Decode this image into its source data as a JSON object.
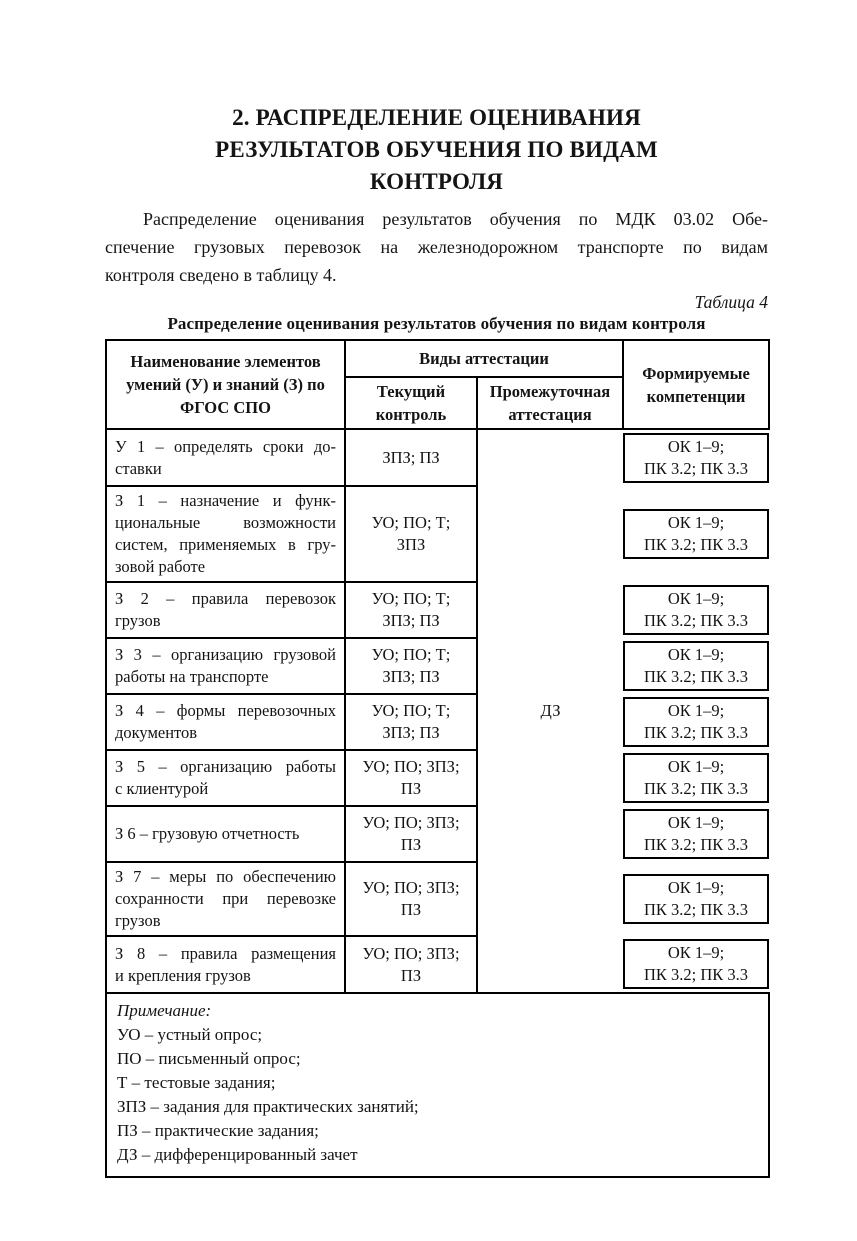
{
  "colors": {
    "background": "#ffffff",
    "text": "#141414",
    "table_border": "#000000"
  },
  "page": {
    "title_lines": [
      "2. РАСПРЕДЕЛЕНИЕ ОЦЕНИВАНИЯ",
      "РЕЗУЛЬТАТОВ ОБУЧЕНИЯ ПО ВИДАМ",
      "КОНТРОЛЯ"
    ],
    "intro_lines": [
      "Распределение оценивания результатов обучения по МДК 03.02 Обе-",
      "спечение грузовых перевозок на железнодорожном транспорте по видам",
      "контроля сведено в таблицу 4."
    ],
    "table_ref": "Таблица 4",
    "table_caption": "Распределение оценивания результатов обучения по видам контроля"
  },
  "table": {
    "headers": {
      "name": "Наименование элементов умений (У) и знаний (З) по ФГОС СПО",
      "group": "Виды аттестации",
      "current": "Текущий контроль",
      "interim": "Промежуточная аттестация",
      "competencies": "Формируемые компетенции"
    },
    "interim_value": "ДЗ",
    "rows": [
      {
        "name_lines": [
          "У 1 – определять сроки до-",
          "ставки"
        ],
        "current_lines": [
          "ЗПЗ; ПЗ"
        ],
        "comp_lines": [
          "ОК 1–9;",
          "ПК 3.2; ПК 3.3"
        ]
      },
      {
        "name_lines": [
          "З 1 – назначение и функ-",
          "циональные возможности",
          "систем, применяемых в гру-",
          "зовой работе"
        ],
        "current_lines": [
          "УО; ПО; Т;",
          "ЗПЗ"
        ],
        "comp_lines": [
          "ОК 1–9;",
          "ПК 3.2; ПК 3.3"
        ]
      },
      {
        "name_lines": [
          "З 2 – правила перевозок",
          "грузов"
        ],
        "current_lines": [
          "УО; ПО; Т;",
          "ЗПЗ; ПЗ"
        ],
        "comp_lines": [
          "ОК 1–9;",
          "ПК 3.2; ПК 3.3"
        ]
      },
      {
        "name_lines": [
          "З 3 – организацию грузовой",
          "работы на транспорте"
        ],
        "current_lines": [
          "УО; ПО; Т;",
          "ЗПЗ; ПЗ"
        ],
        "comp_lines": [
          "ОК 1–9;",
          "ПК 3.2; ПК 3.3"
        ]
      },
      {
        "name_lines": [
          "З 4 – формы перевозочных",
          "документов"
        ],
        "current_lines": [
          "УО; ПО; Т;",
          "ЗПЗ; ПЗ"
        ],
        "comp_lines": [
          "ОК 1–9;",
          "ПК 3.2; ПК 3.3"
        ]
      },
      {
        "name_lines": [
          "З 5 – организацию работы",
          "с клиентурой"
        ],
        "current_lines": [
          "УО; ПО; ЗПЗ;",
          "ПЗ"
        ],
        "comp_lines": [
          "ОК 1–9;",
          "ПК 3.2; ПК 3.3"
        ]
      },
      {
        "name_lines": [
          "З 6 – грузовую отчетность"
        ],
        "current_lines": [
          "УО; ПО; ЗПЗ;",
          "ПЗ"
        ],
        "comp_lines": [
          "ОК 1–9;",
          "ПК 3.2; ПК 3.3"
        ]
      },
      {
        "name_lines": [
          "З 7 – меры по обеспечению",
          "сохранности при перевозке",
          "грузов"
        ],
        "current_lines": [
          "УО; ПО; ЗПЗ;",
          "ПЗ"
        ],
        "comp_lines": [
          "ОК 1–9;",
          "ПК 3.2; ПК 3.3"
        ]
      },
      {
        "name_lines": [
          "З 8 – правила размещения",
          "и крепления грузов"
        ],
        "current_lines": [
          "УО; ПО; ЗПЗ;",
          "ПЗ"
        ],
        "comp_lines": [
          "ОК 1–9;",
          "ПК 3.2; ПК 3.3"
        ]
      }
    ],
    "note_lines": [
      "Примечание:",
      "УО – устный опрос;",
      "ПО – письменный опрос;",
      "Т – тестовые задания;",
      "ЗПЗ – задания для практических занятий;",
      "ПЗ – практические задания;",
      "ДЗ – дифференцированный зачет"
    ]
  }
}
